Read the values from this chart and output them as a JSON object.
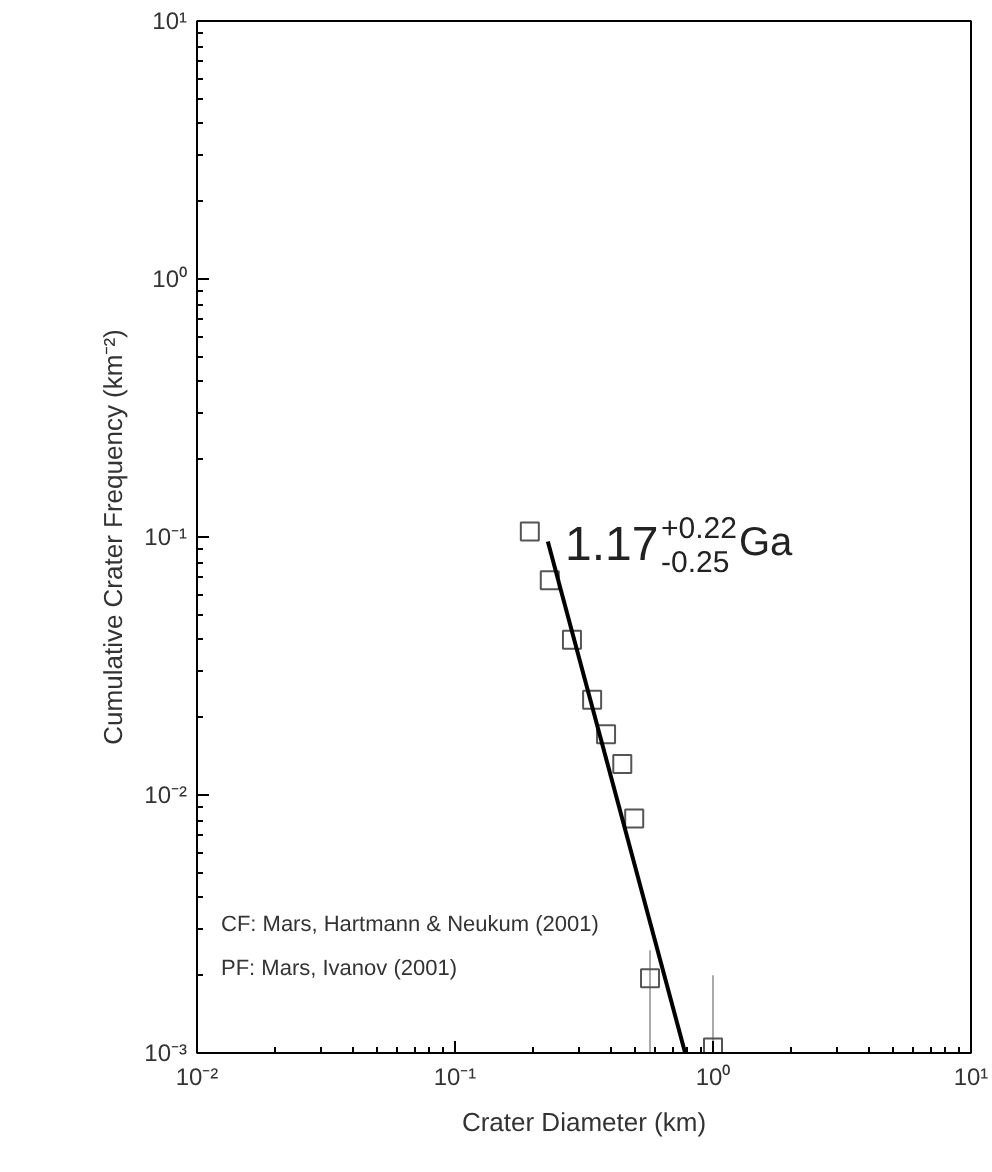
{
  "chart_data": {
    "type": "scatter",
    "xlabel": "Crater Diameter (km)",
    "ylabel": "Cumulative Crater Frequency (km⁻²)",
    "log": "xy",
    "xlim": [
      0.01,
      10
    ],
    "ylim": [
      0.001,
      10
    ],
    "xticks": [
      {
        "value": 0.01,
        "label": "10⁻²"
      },
      {
        "value": 0.1,
        "label": "10⁻¹"
      },
      {
        "value": 1,
        "label": "10⁰"
      },
      {
        "value": 10,
        "label": "10¹"
      }
    ],
    "yticks": [
      {
        "value": 0.001,
        "label": "10⁻³"
      },
      {
        "value": 0.01,
        "label": "10⁻²"
      },
      {
        "value": 0.1,
        "label": "10⁻¹"
      },
      {
        "value": 1,
        "label": "10⁰"
      },
      {
        "value": 10,
        "label": "10¹"
      }
    ],
    "grid": false,
    "series": [
      {
        "marker": "square",
        "color": "#555555",
        "x": [
          0.195,
          0.233,
          0.284,
          0.34,
          0.385,
          0.445,
          0.495,
          0.57,
          1.0
        ],
        "values": [
          0.105,
          0.068,
          0.04,
          0.0234,
          0.0172,
          0.0132,
          0.0081,
          0.00195,
          0.00105
        ],
        "errors": [
          null,
          null,
          null,
          null,
          null,
          null,
          null,
          [
            0.001,
            0.0025
          ],
          [
            0.001,
            0.002
          ]
        ]
      },
      {
        "type": "line",
        "color": "#000000",
        "x": [
          0.229,
          0.78
        ],
        "values": [
          0.096,
          0.001
        ]
      }
    ],
    "annotations": [
      "1.17$^{+0.22}$$_{-0.25}$ Ga",
      "CF: Mars, Hartmann & Neukum (2001)",
      "PF: Mars, Ivanov (2001)"
    ]
  }
}
